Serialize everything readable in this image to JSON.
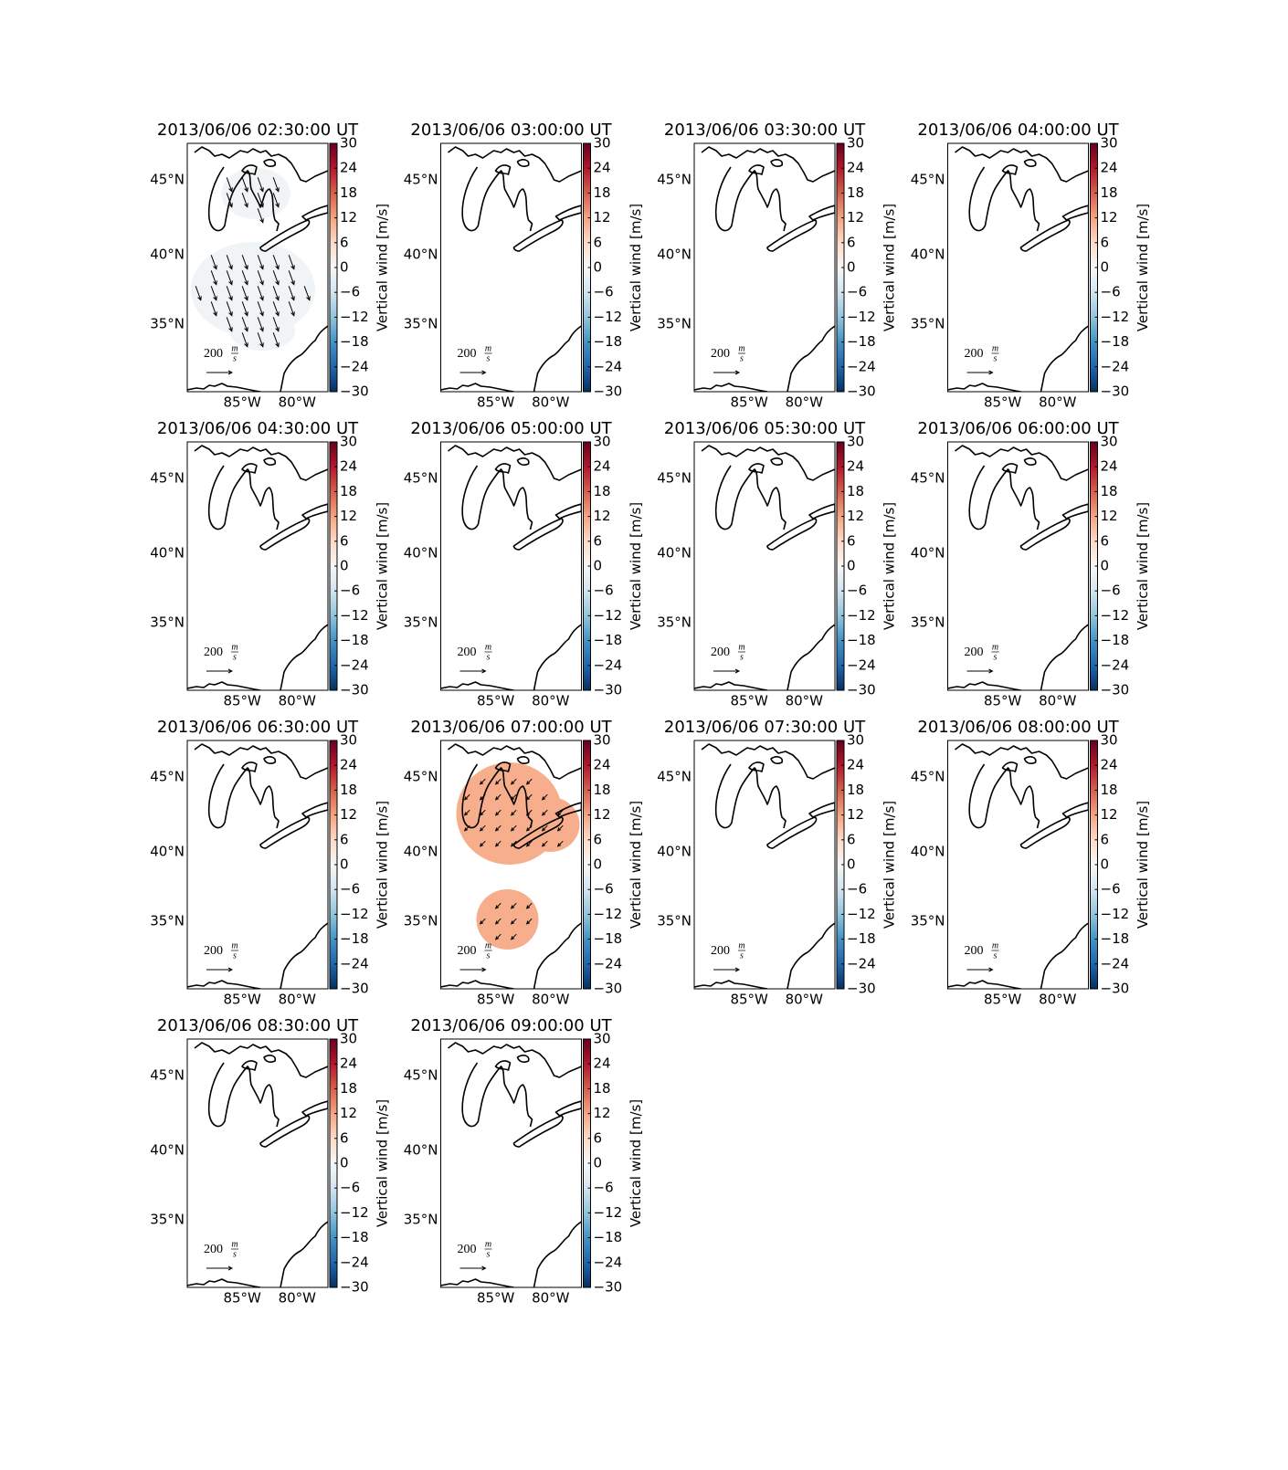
{
  "panels": [
    {
      "title": "2013/06/06 02:30:00 UT",
      "vertical_wind": -1,
      "wind": {
        "u": 40,
        "v": -110
      }
    },
    {
      "title": "2013/06/06 03:00:00 UT"
    },
    {
      "title": "2013/06/06 03:30:00 UT"
    },
    {
      "title": "2013/06/06 04:00:00 UT"
    },
    {
      "title": "2013/06/06 04:30:00 UT"
    },
    {
      "title": "2013/06/06 05:00:00 UT"
    },
    {
      "title": "2013/06/06 05:30:00 UT"
    },
    {
      "title": "2013/06/06 06:00:00 UT"
    },
    {
      "title": "2013/06/06 06:30:00 UT"
    },
    {
      "title": "2013/06/06 07:00:00 UT",
      "vertical_wind": 11,
      "wind": {
        "u": -40,
        "v": -40
      }
    },
    {
      "title": "2013/06/06 07:30:00 UT"
    },
    {
      "title": "2013/06/06 08:00:00 UT"
    },
    {
      "title": "2013/06/06 08:30:00 UT"
    },
    {
      "title": "2013/06/06 09:00:00 UT"
    }
  ],
  "xlim": [
    -90,
    -77.2
  ],
  "ylim": [
    29.8,
    47.3
  ],
  "lat_ticks": [
    {
      "value": 45,
      "label": "45°N"
    },
    {
      "value": 40,
      "label": "40°N"
    },
    {
      "value": 35,
      "label": "35°N"
    }
  ],
  "lon_ticks": [
    {
      "value": -85,
      "label": "85°W"
    },
    {
      "value": -80,
      "label": "80°W"
    }
  ],
  "colorbar": {
    "label": "Vertical wind [m/s]",
    "lim": [
      -30,
      30
    ],
    "ticks": [
      {
        "value": -30,
        "label": "−30"
      },
      {
        "value": -24,
        "label": "−24"
      },
      {
        "value": -18,
        "label": "−18"
      },
      {
        "value": -12,
        "label": "−12"
      },
      {
        "value": -6,
        "label": "−6"
      },
      0,
      6,
      12,
      18,
      24,
      30
    ],
    "colormap": [
      "#053061",
      "#2166ac",
      "#4393c3",
      "#92c5de",
      "#d1e5f0",
      "#f7f7f7",
      "#fddbc7",
      "#f4a582",
      "#d6604d",
      "#b2182b",
      "#67001f"
    ]
  },
  "quiver_key": {
    "value": 200,
    "unit_numerator": "m",
    "unit_denominator": "s"
  }
}
